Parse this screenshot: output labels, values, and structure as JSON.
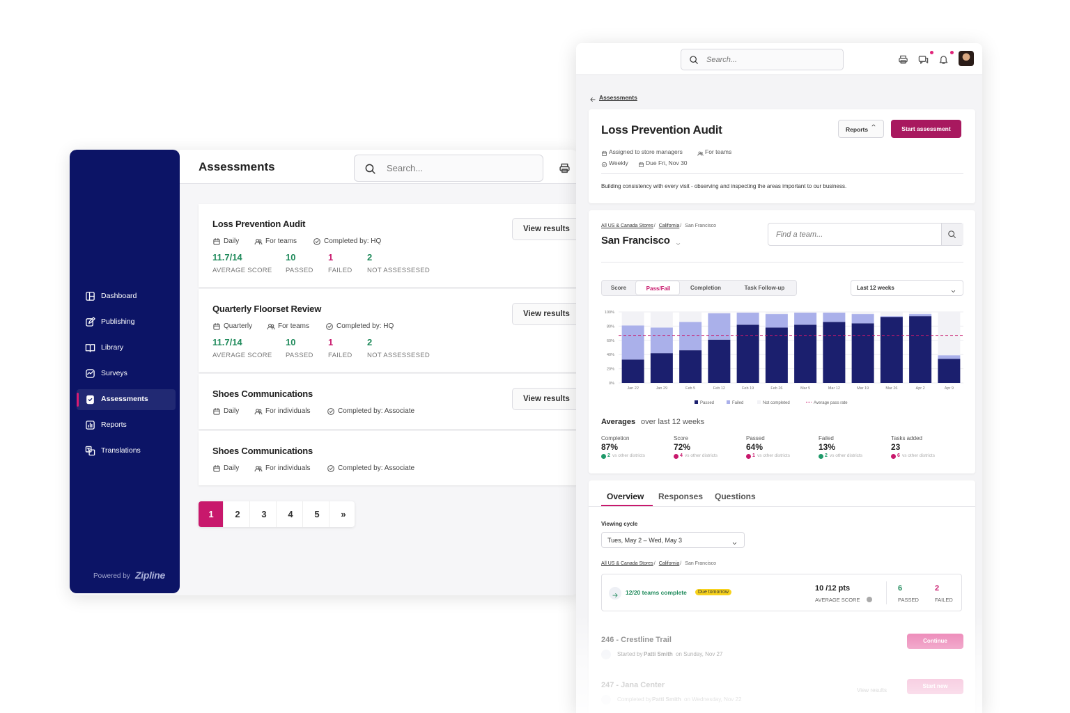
{
  "sidebar": {
    "nav": [
      "Dashboard",
      "Publishing",
      "Library",
      "Surveys",
      "Assessments",
      "Reports",
      "Translations"
    ],
    "active": 4,
    "powered_by": "Powered by",
    "brand": "Zipline"
  },
  "list_page": {
    "title": "Assessments",
    "search_placeholder": "Search...",
    "cards": [
      {
        "title": "Loss Prevention Audit",
        "meta": [
          "Daily",
          "For teams",
          "Completed by: HQ"
        ],
        "button": "View results",
        "stats": [
          {
            "value": "11.7/14",
            "label": "AVERAGE SCORE",
            "color": "#1f8a5b"
          },
          {
            "value": "10",
            "label": "PASSED",
            "color": "#1f8a5b"
          },
          {
            "value": "1",
            "label": "FAILED",
            "color": "#c8186c"
          },
          {
            "value": "2",
            "label": "NOT ASSESSESED",
            "color": "#1f8a5b"
          }
        ]
      },
      {
        "title": "Quarterly Floorset Review",
        "meta": [
          "Quarterly",
          "For teams",
          "Completed by: HQ"
        ],
        "button": "View results",
        "stats": [
          {
            "value": "11.7/14",
            "label": "AVERAGE SCORE",
            "color": "#1f8a5b"
          },
          {
            "value": "10",
            "label": "PASSED",
            "color": "#1f8a5b"
          },
          {
            "value": "1",
            "label": "FAILED",
            "color": "#c8186c"
          },
          {
            "value": "2",
            "label": "NOT ASSESSESED",
            "color": "#1f8a5b"
          }
        ]
      },
      {
        "title": "Shoes Communications",
        "meta": [
          "Daily",
          "For individuals",
          "Completed by: Associate"
        ],
        "button": "View results"
      },
      {
        "title": "Shoes Communications",
        "meta": [
          "Daily",
          "For individuals",
          "Completed by: Associate"
        ]
      }
    ],
    "pagination": [
      "1",
      "2",
      "3",
      "4",
      "5",
      "»"
    ],
    "current_page": 0
  },
  "detail_page": {
    "search_placeholder": "Search...",
    "back": "Assessments",
    "title": "Loss Prevention Audit",
    "reports_button": "Reports",
    "start_button": "Start assessment",
    "meta": [
      "Assigned to store managers",
      "For teams",
      "Weekly",
      "Due Fri, Nov 30"
    ],
    "description": "Building consistency with every visit - observing and inspecting the areas important to our business.",
    "breadcrumb": [
      "All US & Canada Stores",
      "California",
      "San Francisco"
    ],
    "location": "San Francisco",
    "find_placeholder": "Find a team...",
    "chart_tabs": [
      "Score",
      "Pass/Fail",
      "Completion",
      "Task Follow-up"
    ],
    "active_chart_tab": 1,
    "range": "Last 12 weeks",
    "averages_title": "Averages",
    "averages_subtitle": "over last 12 weeks",
    "averages": [
      {
        "label": "Completion",
        "value": "87%",
        "delta": "2",
        "trend": "up",
        "note": "vs other districts"
      },
      {
        "label": "Score",
        "value": "72%",
        "delta": "4",
        "trend": "down",
        "note": "vs other districts"
      },
      {
        "label": "Passed",
        "value": "64%",
        "delta": "1",
        "trend": "down",
        "note": "vs other districts"
      },
      {
        "label": "Failed",
        "value": "13%",
        "delta": "2",
        "trend": "up",
        "note": "vs other districts"
      },
      {
        "label": "Tasks added",
        "value": "23",
        "delta": "6",
        "trend": "down",
        "note": "vs other districts"
      }
    ],
    "tabs": [
      "Overview",
      "Responses",
      "Questions"
    ],
    "active_tab": 0,
    "viewing_cycle_label": "Viewing cycle",
    "viewing_cycle": "Tues, May 2 – Wed, May 3",
    "breadcrumb2": [
      "All US & Canada Stores",
      "California",
      "San Francisco"
    ],
    "summary": {
      "teams": "12/20 teams complete",
      "badge": "Due tomorrow",
      "points": "10 /12 pts",
      "points_label": "AVERAGE SCORE",
      "passed": "6",
      "passed_label": "PASSED",
      "failed": "2",
      "failed_label": "FAILED"
    },
    "items": [
      {
        "title": "246 - Crestline Trail",
        "prefix": "Started by",
        "person": "Patti Smith",
        "suffix": "on Sunday, Nov 27",
        "button": "Continue"
      },
      {
        "title": "247 - Jana Center",
        "prefix": "Completed by",
        "person": "Patti Smith",
        "suffix": "on Wednesday, Nov 22",
        "link": "View results",
        "button": "Start new"
      }
    ]
  },
  "chart_data": {
    "type": "stacked_bar",
    "categories": [
      "Jan 22",
      "Jan 29",
      "Feb 5",
      "Feb 12",
      "Feb 19",
      "Feb 26",
      "Mar 5",
      "Mar 12",
      "Mar 19",
      "Mar 26",
      "Apr 2",
      "Apr 9"
    ],
    "series": [
      {
        "name": "Passed",
        "color": "#1b1f6e",
        "values": [
          33,
          42,
          46,
          61,
          82,
          78,
          82,
          86,
          84,
          93,
          94,
          34
        ]
      },
      {
        "name": "Failed",
        "color": "#aab0ea",
        "values": [
          48,
          36,
          40,
          37,
          17,
          19,
          17,
          13,
          13,
          1,
          3,
          5
        ]
      },
      {
        "name": "Not completed",
        "color": "#f2f2f6",
        "values": [
          19,
          22,
          14,
          2,
          1,
          3,
          1,
          1,
          3,
          6,
          3,
          61
        ]
      }
    ],
    "reference_lines": [
      {
        "name": "Average pass rate",
        "value": 67,
        "color": "#c8186c"
      }
    ],
    "ylim": [
      0,
      100
    ],
    "yticks": [
      {
        "value": 0,
        "label": "0%"
      },
      {
        "value": 20,
        "label": "20%"
      },
      {
        "value": 40,
        "label": "40%"
      },
      {
        "value": 60,
        "label": "60%"
      },
      {
        "value": 80,
        "label": "80%"
      },
      {
        "value": 100,
        "label": "100%"
      }
    ],
    "grid": true
  }
}
